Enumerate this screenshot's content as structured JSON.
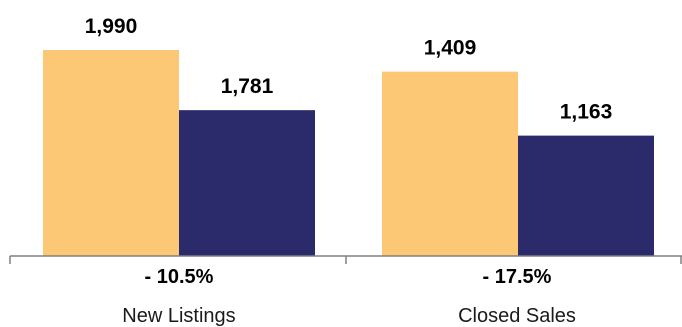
{
  "chart_data": {
    "type": "bar",
    "categories": [
      "New Listings",
      "Closed Sales"
    ],
    "changes": [
      "- 10.5%",
      "- 17.5%"
    ],
    "series": [
      {
        "values": [
          1990,
          1781
        ],
        "color": "#FDC875"
      },
      {
        "values": [
          1409,
          1163
        ],
        "color": "#2B2A6A"
      }
    ],
    "data_labels": [
      [
        "1,990",
        "1,781"
      ],
      [
        "1,409",
        "1,163"
      ]
    ],
    "ylim": [
      0,
      2280
    ],
    "grid": false,
    "legend": "none"
  }
}
